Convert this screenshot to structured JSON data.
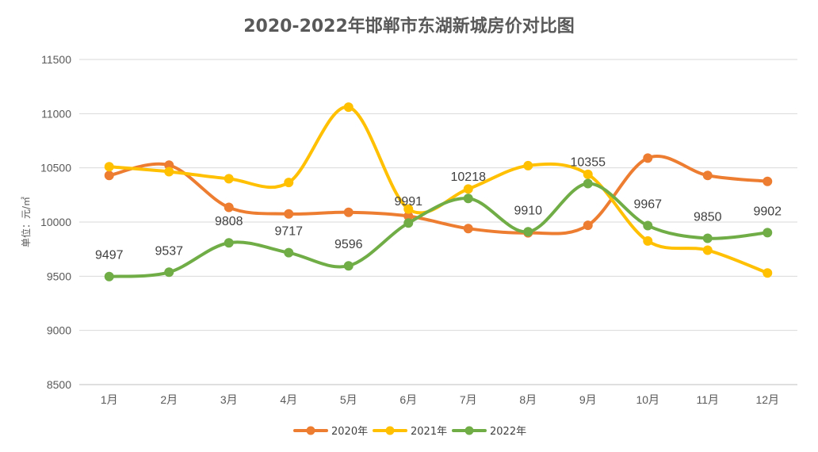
{
  "chart_data": {
    "type": "line",
    "title": "2020-2022年邯郸市东湖新城房价对比图",
    "ylabel": "单位：元/㎡",
    "categories": [
      "1月",
      "2月",
      "3月",
      "4月",
      "5月",
      "6月",
      "7月",
      "8月",
      "9月",
      "10月",
      "11月",
      "12月"
    ],
    "ylim": [
      8500,
      11500
    ],
    "yticks": [
      8500,
      9000,
      9500,
      10000,
      10500,
      11000,
      11500
    ],
    "grid": true,
    "legend_position": "bottom",
    "series": [
      {
        "name": "2020年",
        "color": "#ED7D31",
        "values": [
          10430,
          10525,
          10135,
          10075,
          10090,
          10055,
          9940,
          9900,
          9970,
          10590,
          10430,
          10375
        ],
        "labels": false
      },
      {
        "name": "2021年",
        "color": "#FFC000",
        "values": [
          10510,
          10465,
          10400,
          10365,
          11060,
          10120,
          10305,
          10520,
          10440,
          9825,
          9740,
          9530
        ],
        "labels": false
      },
      {
        "name": "2022年",
        "color": "#70AD47",
        "values": [
          9497,
          9537,
          9808,
          9717,
          9596,
          9991,
          10218,
          9910,
          10355,
          9967,
          9850,
          9902
        ],
        "labels": true
      }
    ]
  }
}
